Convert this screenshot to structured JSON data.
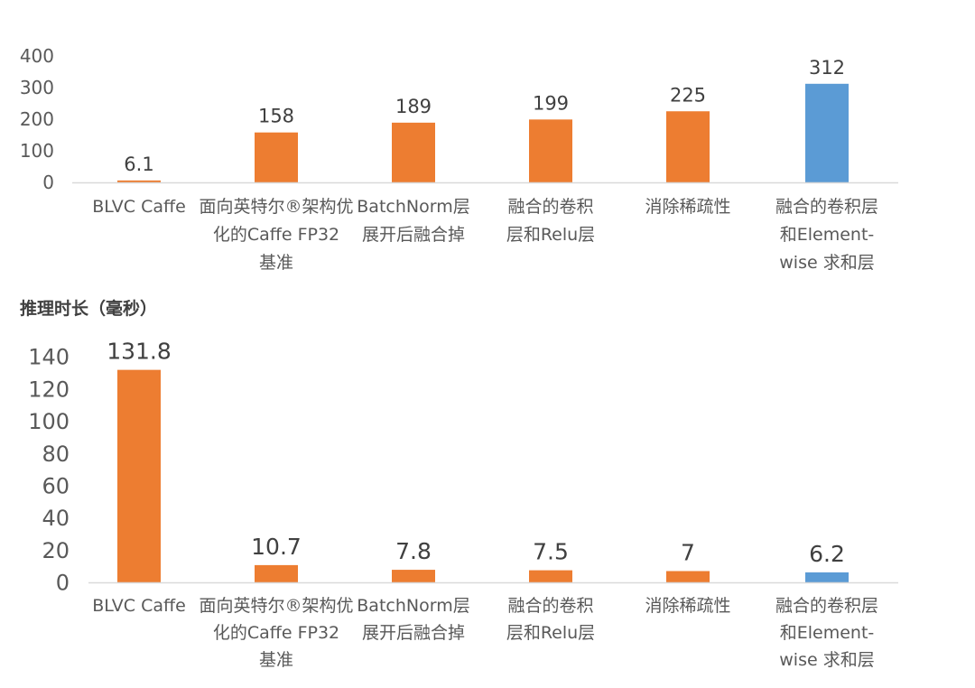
{
  "colors": {
    "orange": "#ED7D31",
    "blue": "#5B9BD5",
    "axis": "#D9D9D9",
    "text": "#595959"
  },
  "chart_data": [
    {
      "type": "bar",
      "title": "",
      "xlabel": "",
      "ylabel": "",
      "ylim": [
        0,
        400
      ],
      "yticks": [
        "0",
        "100",
        "200",
        "300",
        "400"
      ],
      "categories": [
        [
          "BLVC Caffe"
        ],
        [
          "面向英特尔®架构优",
          "化的Caffe FP32",
          "基准"
        ],
        [
          "BatchNorm层",
          "展开后融合掉"
        ],
        [
          "融合的卷积",
          "层和Relu层"
        ],
        [
          "消除稀疏性"
        ],
        [
          "融合的卷积层",
          "和Element-",
          "wise 求和层"
        ]
      ],
      "values": [
        6.1,
        158,
        189,
        199,
        225,
        312
      ],
      "data_labels": [
        "6.1",
        "158",
        "189",
        "199",
        "225",
        "312"
      ],
      "bar_colors": [
        "orange",
        "orange",
        "orange",
        "orange",
        "orange",
        "blue"
      ],
      "grid": false
    },
    {
      "type": "bar",
      "title": "",
      "xlabel": "",
      "ylabel": "推理时长（毫秒）",
      "ylim": [
        0,
        140
      ],
      "yticks": [
        "0",
        "20",
        "40",
        "60",
        "80",
        "100",
        "120",
        "140"
      ],
      "categories": [
        [
          "BLVC Caffe"
        ],
        [
          "面向英特尔®架构优",
          "化的Caffe FP32",
          "基准"
        ],
        [
          "BatchNorm层",
          "展开后融合掉"
        ],
        [
          "融合的卷积",
          "层和Relu层"
        ],
        [
          "消除稀疏性"
        ],
        [
          "融合的卷积层",
          "和Element-",
          "wise 求和层"
        ]
      ],
      "values": [
        131.8,
        10.7,
        7.8,
        7.5,
        7,
        6.2
      ],
      "data_labels": [
        "131.8",
        "10.7",
        "7.8",
        "7.5",
        "7",
        "6.2"
      ],
      "bar_colors": [
        "orange",
        "orange",
        "orange",
        "orange",
        "orange",
        "blue"
      ],
      "grid": false
    }
  ]
}
